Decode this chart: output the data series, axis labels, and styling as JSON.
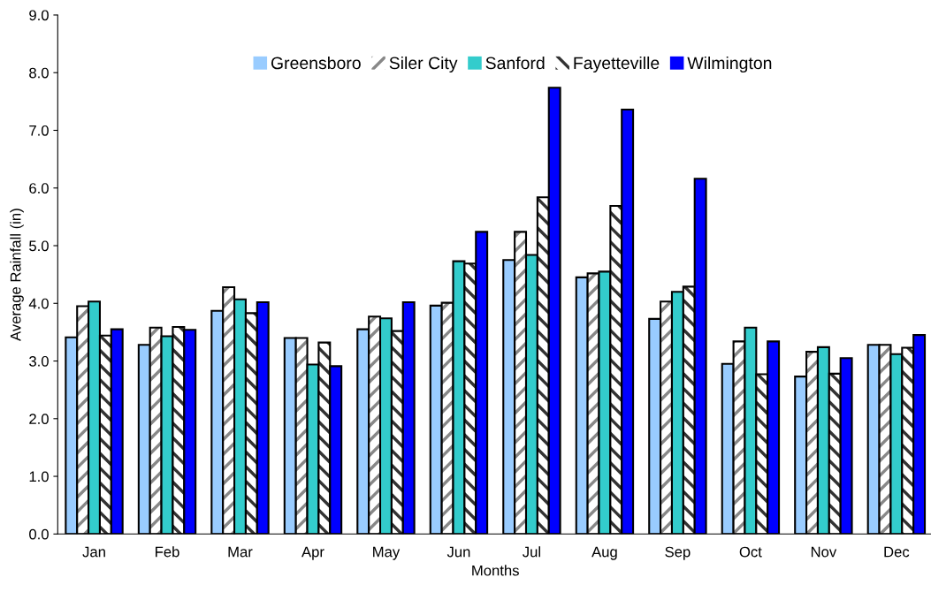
{
  "chart_data": {
    "type": "bar",
    "xlabel": "Months",
    "ylabel": "Average Rainfall (in)",
    "categories": [
      "Jan",
      "Feb",
      "Mar",
      "Apr",
      "May",
      "Jun",
      "Jul",
      "Aug",
      "Sep",
      "Oct",
      "Nov",
      "Dec"
    ],
    "series": [
      {
        "name": "Greensboro",
        "color": "#99ccff",
        "values": [
          3.41,
          3.28,
          3.87,
          3.4,
          3.55,
          3.96,
          4.75,
          4.45,
          3.73,
          2.95,
          2.73,
          3.28
        ]
      },
      {
        "name": "Siler City",
        "color": "#ffffff",
        "values": [
          3.95,
          3.58,
          4.28,
          3.4,
          3.77,
          4.01,
          5.24,
          4.52,
          4.03,
          3.34,
          3.16,
          3.28
        ]
      },
      {
        "name": "Sanford",
        "color": "#33cccc",
        "values": [
          4.03,
          3.43,
          4.07,
          2.94,
          3.74,
          4.73,
          4.84,
          4.55,
          4.2,
          3.58,
          3.24,
          3.12
        ]
      },
      {
        "name": "Fayetteville",
        "color": "#ffffff",
        "values": [
          3.44,
          3.59,
          3.83,
          3.32,
          3.52,
          4.69,
          5.84,
          5.69,
          4.29,
          2.77,
          2.78,
          3.23
        ]
      },
      {
        "name": "Wilmington",
        "color": "#0000ff",
        "values": [
          3.55,
          3.54,
          4.02,
          2.91,
          4.02,
          5.24,
          7.74,
          7.36,
          6.16,
          3.34,
          3.05,
          3.45
        ]
      }
    ],
    "ylim": [
      0,
      9
    ],
    "yticks": [
      {
        "value": 0,
        "label": "0.0"
      },
      {
        "value": 1,
        "label": "1.0"
      },
      {
        "value": 2,
        "label": "2.0"
      },
      {
        "value": 3,
        "label": "3.0"
      },
      {
        "value": 4,
        "label": "4.0"
      },
      {
        "value": 5,
        "label": "5.0"
      },
      {
        "value": 6,
        "label": "6.0"
      },
      {
        "value": 7,
        "label": "7.0"
      },
      {
        "value": 8,
        "label": "8.0"
      },
      {
        "value": 9,
        "label": "9.0"
      }
    ],
    "grid": false,
    "legend": "top"
  }
}
